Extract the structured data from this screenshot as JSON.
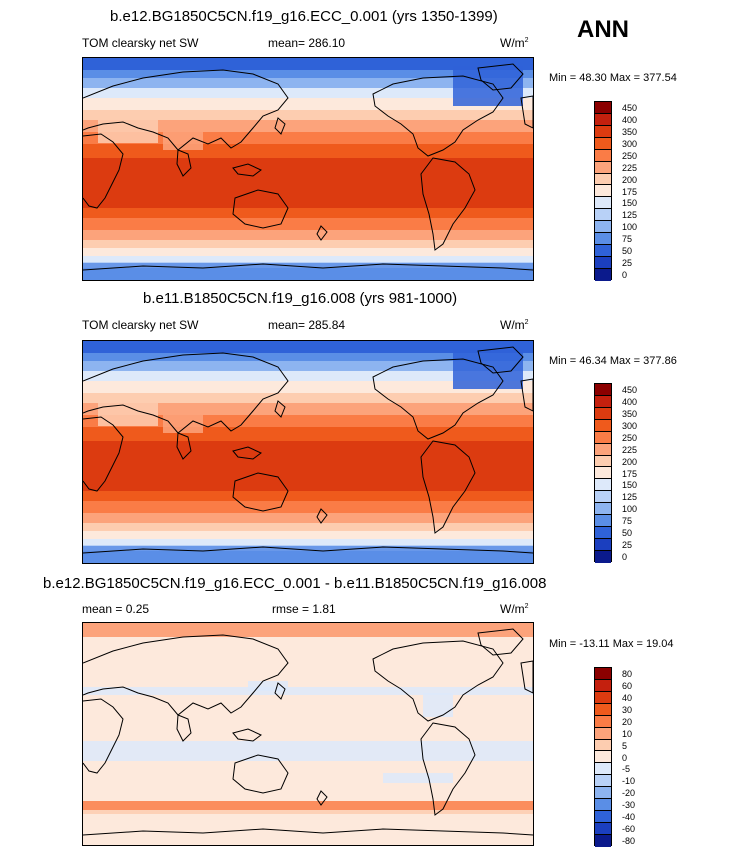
{
  "season_label": "ANN",
  "chart_data": [
    {
      "type": "heatmap",
      "title": "b.e12.BG1850C5CN.f19_g16.ECC_0.001 (yrs 1350-1399)",
      "variable": "TOM clearsky net SW",
      "mean_text": "mean= 286.10",
      "units_main": "W/m",
      "units_exp": "2",
      "minmax_text": "Min =  48.30 Max = 377.54",
      "min": 48.3,
      "max": 377.54,
      "mean": 286.1,
      "levels": [
        "450",
        "400",
        "350",
        "300",
        "250",
        "225",
        "200",
        "175",
        "150",
        "125",
        "100",
        "75",
        "50",
        "25",
        "0"
      ],
      "colors": [
        "#8b0000",
        "#c4200e",
        "#dc3b10",
        "#ef5a1c",
        "#fa7c46",
        "#fca37b",
        "#fdcdb0",
        "#fde9dc",
        "#dde9fa",
        "#b8d1f7",
        "#8db4f0",
        "#5a8ee6",
        "#2f62d8",
        "#1b3fbf",
        "#0b1a8c"
      ]
    },
    {
      "type": "heatmap",
      "title": "b.e11.B1850C5CN.f19_g16.008 (yrs 981-1000)",
      "variable": "TOM clearsky net SW",
      "mean_text": "mean= 285.84",
      "units_main": "W/m",
      "units_exp": "2",
      "minmax_text": "Min =  46.34 Max = 377.86",
      "min": 46.34,
      "max": 377.86,
      "mean": 285.84,
      "levels": [
        "450",
        "400",
        "350",
        "300",
        "250",
        "225",
        "200",
        "175",
        "150",
        "125",
        "100",
        "75",
        "50",
        "25",
        "0"
      ],
      "colors": [
        "#8b0000",
        "#c4200e",
        "#dc3b10",
        "#ef5a1c",
        "#fa7c46",
        "#fca37b",
        "#fdcdb0",
        "#fde9dc",
        "#dde9fa",
        "#b8d1f7",
        "#8db4f0",
        "#5a8ee6",
        "#2f62d8",
        "#1b3fbf",
        "#0b1a8c"
      ]
    },
    {
      "type": "heatmap",
      "title": "b.e12.BG1850C5CN.f19_g16.ECC_0.001 - b.e11.B1850C5CN.f19_g16.008",
      "mean_text": "mean =   0.25",
      "rmse_text": "rmse =   1.81",
      "units_main": "W/m",
      "units_exp": "2",
      "minmax_text": "Min = -13.11 Max =  19.04",
      "min": -13.11,
      "max": 19.04,
      "mean": 0.25,
      "rmse": 1.81,
      "levels": [
        "80",
        "60",
        "40",
        "30",
        "20",
        "10",
        "5",
        "0",
        "-5",
        "-10",
        "-20",
        "-30",
        "-40",
        "-60",
        "-80"
      ],
      "colors": [
        "#8b0000",
        "#c4200e",
        "#dc3b10",
        "#ef5a1c",
        "#fa7c46",
        "#fca37b",
        "#fdcdb0",
        "#fde9dc",
        "#dde9fa",
        "#b8d1f7",
        "#8db4f0",
        "#5a8ee6",
        "#2f62d8",
        "#1b3fbf",
        "#0b1a8c"
      ]
    }
  ]
}
